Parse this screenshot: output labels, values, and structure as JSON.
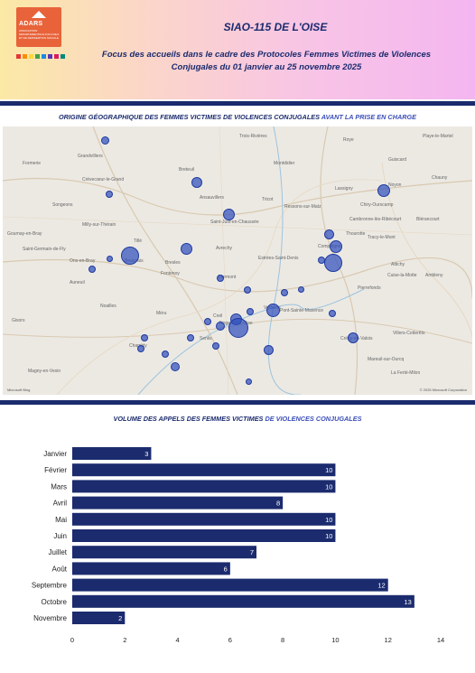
{
  "header": {
    "logo_name": "ADARS",
    "logo_subtitle": "ASSOCIATION DEPARTEMENTALE D'ACCUEIL ET DE REINSERTION SOCIALE",
    "logo_squares": [
      "#e53935",
      "#fb8c00",
      "#fdd835",
      "#43a047",
      "#1e88e5",
      "#5e35b1",
      "#d81b60",
      "#00897b"
    ],
    "title": "SIAO-115 DE L'OISE",
    "subtitle_line1": "Focus des accueils dans le cadre des Protocoles Femmes Victimes de Violences",
    "subtitle_line2": "Conjugales du 01 janvier au 25 novembre 2025"
  },
  "map_section": {
    "title_part1": "ORIGINE GÉOGRAPHIQUE DES FEMMES VICTIMES DE VIOLENCES CONJUGALES",
    "title_part2": " AVANT LA PRISE EN CHARGE",
    "credit": "© 2025 Microsoft Corporation",
    "provider": "Microsoft Bing",
    "towns": [
      "Grandvilliers",
      "Formerie",
      "Crèvecœur-le-Grand",
      "Breteuil",
      "Trois-Rivières",
      "Montdidier",
      "Roye",
      "Guiscard",
      "Noyon",
      "Chauny",
      "Ressons-sur-Matz",
      "Lassigny",
      "Chiry-Ourscamp",
      "Cambronne-lès-Ribécourt",
      "Songeons",
      "Milly-sur-Thérain",
      "Ansauvillers",
      "Saint-Just-en-Chaussée",
      "Tricot",
      "Gournay-en-Bray",
      "Saint-Germain-de-Fly",
      "Tillé",
      "Beauvais",
      "Avrechy",
      "Estrées-Saint-Denis",
      "Compiègne",
      "Thourotte",
      "Tracy-le-Mont",
      "Blérancourt",
      "Attichy",
      "Cuise-la-Motte",
      "Ambleny",
      "Pierrefonds",
      "Auneuil",
      "Bresles",
      "Clermont",
      "Pont-Sainte-Maxence",
      "Verberie",
      "Crépy-en-Valois",
      "Villers-Cotterêts",
      "La Ferté-Milon",
      "Chambly",
      "Senlis",
      "Magny-en-Vexin",
      "Méru",
      "Creil",
      "Nogent-sur-Oise",
      "Ons-en-Bray",
      "Mareuil-sur-Ourcq",
      "Playe-le-Martel",
      "Fontenoy",
      "Gisors",
      "Noailles"
    ]
  },
  "chart_section": {
    "title_part1": "VOLUME DES APPELS DES FEMMES VICTIMES",
    "title_part2": " DE VIOLENCES CONJUGALES"
  },
  "colors": {
    "bar": "#1b2b6e",
    "accent": "#3b4fb8",
    "bubble": "#3250be"
  },
  "chart_data": {
    "type": "bar",
    "orientation": "horizontal",
    "categories": [
      "Janvier",
      "Février",
      "Mars",
      "Avril",
      "Mai",
      "Juin",
      "Juillet",
      "Août",
      "Septembre",
      "Octobre",
      "Novembre"
    ],
    "values": [
      3,
      10,
      10,
      8,
      10,
      10,
      7,
      6,
      12,
      13,
      2
    ],
    "xlim": [
      0,
      14
    ],
    "xticks": [
      0,
      2,
      4,
      6,
      8,
      10,
      12,
      14
    ],
    "data_labels": true,
    "grid": false,
    "title": "VOLUME DES APPELS DES FEMMES VICTIMES DE VIOLENCES CONJUGALES"
  }
}
